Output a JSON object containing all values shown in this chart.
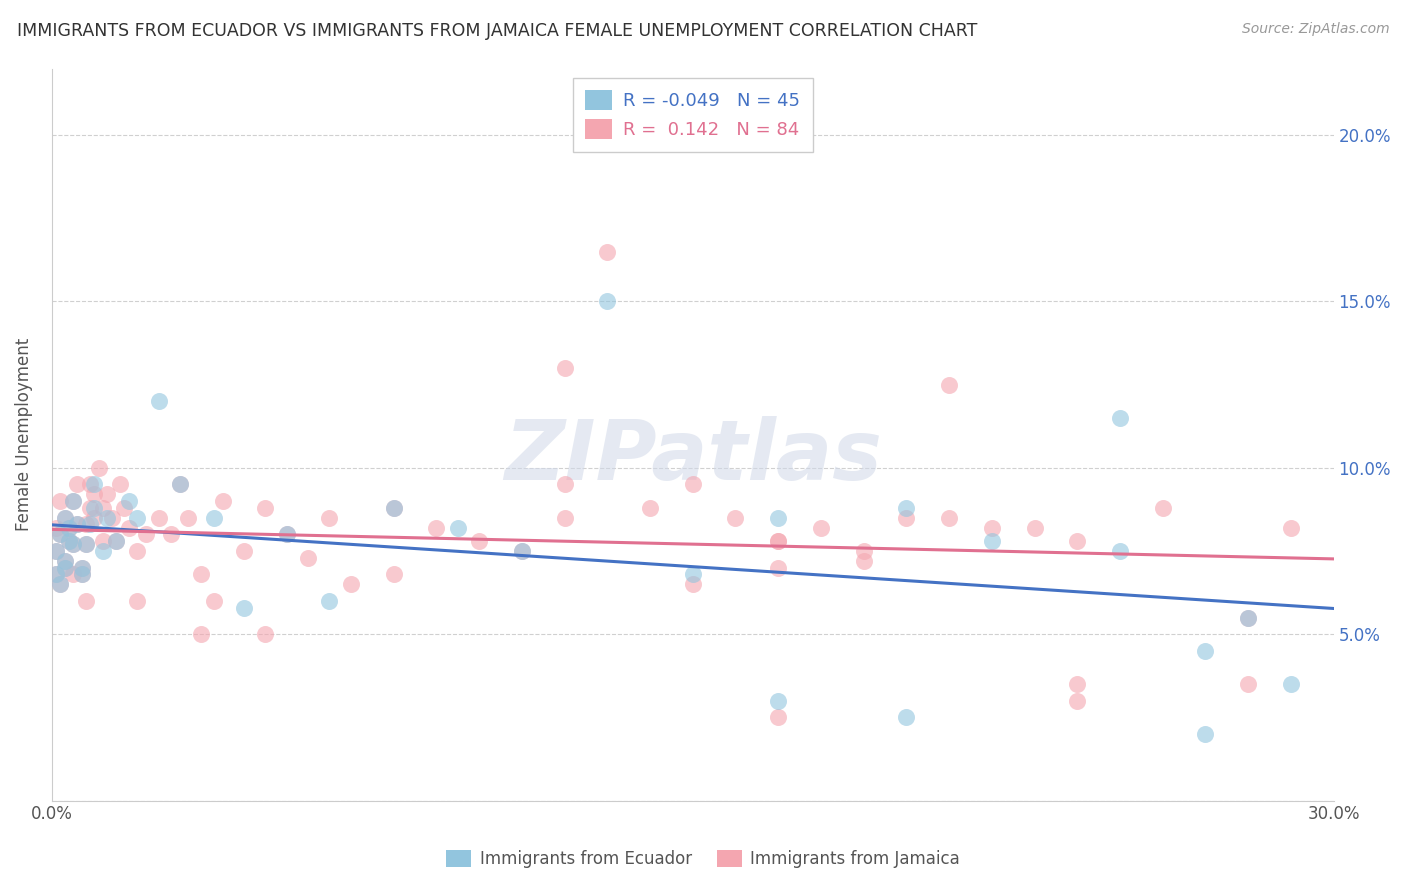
{
  "title": "IMMIGRANTS FROM ECUADOR VS IMMIGRANTS FROM JAMAICA FEMALE UNEMPLOYMENT CORRELATION CHART",
  "source": "Source: ZipAtlas.com",
  "ylabel": "Female Unemployment",
  "xlim": [
    0.0,
    0.3
  ],
  "ylim": [
    0.0,
    0.22
  ],
  "ecuador_color": "#92c5de",
  "jamaica_color": "#f4a6b0",
  "ecuador_line_color": "#4472c4",
  "jamaica_line_color": "#e07090",
  "ecuador_R": -0.049,
  "ecuador_N": 45,
  "jamaica_R": 0.142,
  "jamaica_N": 84,
  "watermark": "ZIPatlas",
  "background_color": "#ffffff",
  "grid_color": "#d0d0d0",
  "ecuador_x": [
    0.001,
    0.001,
    0.002,
    0.002,
    0.003,
    0.003,
    0.003,
    0.004,
    0.004,
    0.005,
    0.005,
    0.006,
    0.007,
    0.007,
    0.008,
    0.009,
    0.01,
    0.01,
    0.012,
    0.013,
    0.015,
    0.018,
    0.02,
    0.025,
    0.03,
    0.038,
    0.045,
    0.055,
    0.065,
    0.08,
    0.095,
    0.11,
    0.13,
    0.15,
    0.17,
    0.2,
    0.22,
    0.25,
    0.27,
    0.29,
    0.17,
    0.2,
    0.25,
    0.27,
    0.28
  ],
  "ecuador_y": [
    0.075,
    0.068,
    0.08,
    0.065,
    0.072,
    0.085,
    0.07,
    0.078,
    0.082,
    0.077,
    0.09,
    0.083,
    0.07,
    0.068,
    0.077,
    0.083,
    0.095,
    0.088,
    0.075,
    0.085,
    0.078,
    0.09,
    0.085,
    0.12,
    0.095,
    0.085,
    0.058,
    0.08,
    0.06,
    0.088,
    0.082,
    0.075,
    0.15,
    0.068,
    0.085,
    0.088,
    0.078,
    0.075,
    0.045,
    0.035,
    0.03,
    0.025,
    0.115,
    0.02,
    0.055
  ],
  "jamaica_x": [
    0.001,
    0.001,
    0.001,
    0.002,
    0.002,
    0.002,
    0.003,
    0.003,
    0.003,
    0.004,
    0.004,
    0.005,
    0.005,
    0.006,
    0.006,
    0.007,
    0.007,
    0.008,
    0.008,
    0.009,
    0.009,
    0.01,
    0.01,
    0.011,
    0.012,
    0.013,
    0.014,
    0.015,
    0.016,
    0.017,
    0.018,
    0.02,
    0.022,
    0.025,
    0.028,
    0.03,
    0.032,
    0.035,
    0.038,
    0.04,
    0.045,
    0.05,
    0.055,
    0.06,
    0.065,
    0.07,
    0.08,
    0.09,
    0.1,
    0.11,
    0.12,
    0.13,
    0.14,
    0.15,
    0.16,
    0.17,
    0.18,
    0.19,
    0.2,
    0.21,
    0.22,
    0.24,
    0.26,
    0.28,
    0.29,
    0.15,
    0.17,
    0.19,
    0.21,
    0.24,
    0.005,
    0.008,
    0.012,
    0.02,
    0.035,
    0.05,
    0.08,
    0.12,
    0.17,
    0.23,
    0.12,
    0.17,
    0.24,
    0.28
  ],
  "jamaica_y": [
    0.075,
    0.082,
    0.068,
    0.08,
    0.065,
    0.09,
    0.072,
    0.085,
    0.07,
    0.078,
    0.082,
    0.077,
    0.09,
    0.083,
    0.095,
    0.07,
    0.068,
    0.077,
    0.083,
    0.095,
    0.088,
    0.092,
    0.085,
    0.1,
    0.088,
    0.092,
    0.085,
    0.078,
    0.095,
    0.088,
    0.082,
    0.075,
    0.08,
    0.085,
    0.08,
    0.095,
    0.085,
    0.068,
    0.06,
    0.09,
    0.075,
    0.088,
    0.08,
    0.073,
    0.085,
    0.065,
    0.088,
    0.082,
    0.078,
    0.075,
    0.085,
    0.165,
    0.088,
    0.095,
    0.085,
    0.078,
    0.082,
    0.075,
    0.085,
    0.125,
    0.082,
    0.078,
    0.088,
    0.035,
    0.082,
    0.065,
    0.078,
    0.072,
    0.085,
    0.03,
    0.068,
    0.06,
    0.078,
    0.06,
    0.05,
    0.05,
    0.068,
    0.13,
    0.025,
    0.082,
    0.095,
    0.07,
    0.035,
    0.055
  ]
}
